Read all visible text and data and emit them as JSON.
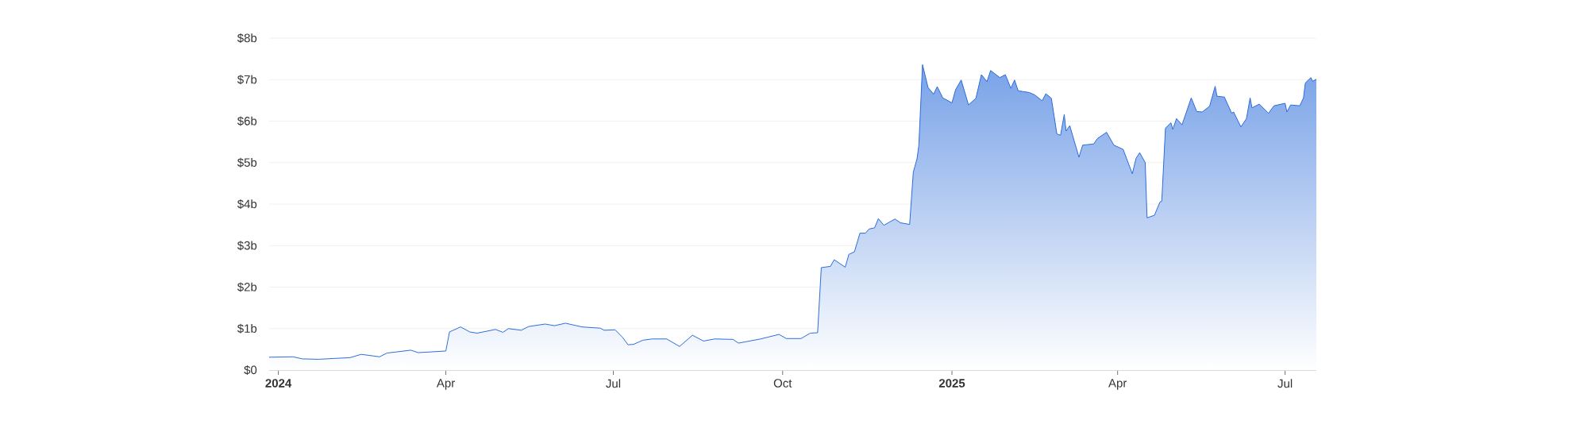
{
  "chart_data": {
    "type": "area",
    "color": "#2f6fdb",
    "grid": "y",
    "xlim": [
      "2023-12-27",
      "2025-07-18"
    ],
    "xticks": [
      {
        "value": "2024-01-01",
        "label": "2024"
      },
      {
        "value": "2024-04-01",
        "label": "Apr"
      },
      {
        "value": "2024-07-01",
        "label": "Jul"
      },
      {
        "value": "2024-10-01",
        "label": "Oct"
      },
      {
        "value": "2025-01-01",
        "label": "2025"
      },
      {
        "value": "2025-04-01",
        "label": "Apr"
      },
      {
        "value": "2025-07-01",
        "label": "Jul"
      }
    ],
    "ylim": [
      0,
      8
    ],
    "yticks": [
      {
        "value": 0,
        "label": "$0"
      },
      {
        "value": 1,
        "label": "$1b"
      },
      {
        "value": 2,
        "label": "$2b"
      },
      {
        "value": 3,
        "label": "$3b"
      },
      {
        "value": 4,
        "label": "$4b"
      },
      {
        "value": 5,
        "label": "$5b"
      },
      {
        "value": 6,
        "label": "$6b"
      },
      {
        "value": 7,
        "label": "$7b"
      },
      {
        "value": 8,
        "label": "$8b"
      }
    ],
    "x": [
      "2023-12-27",
      "2024-01-09",
      "2024-01-14",
      "2024-01-23",
      "2024-02-09",
      "2024-02-15",
      "2024-02-25",
      "2024-02-29",
      "2024-03-13",
      "2024-03-17",
      "2024-04-01",
      "2024-04-03",
      "2024-04-09",
      "2024-04-14",
      "2024-04-18",
      "2024-04-28",
      "2024-05-02",
      "2024-05-05",
      "2024-05-12",
      "2024-05-16",
      "2024-05-25",
      "2024-05-30",
      "2024-06-05",
      "2024-06-14",
      "2024-06-24",
      "2024-06-26",
      "2024-07-02",
      "2024-07-06",
      "2024-07-09",
      "2024-07-12",
      "2024-07-17",
      "2024-07-22",
      "2024-07-30",
      "2024-08-06",
      "2024-08-13",
      "2024-08-19",
      "2024-08-25",
      "2024-09-04",
      "2024-09-07",
      "2024-09-19",
      "2024-09-29",
      "2024-10-03",
      "2024-10-11",
      "2024-10-16",
      "2024-10-20",
      "2024-10-22",
      "2024-10-27",
      "2024-10-29",
      "2024-11-04",
      "2024-11-06",
      "2024-11-09",
      "2024-11-12",
      "2024-11-15",
      "2024-11-17",
      "2024-11-20",
      "2024-11-22",
      "2024-11-25",
      "2024-12-01",
      "2024-12-04",
      "2024-12-09",
      "2024-12-11",
      "2024-12-13",
      "2024-12-14",
      "2024-12-16",
      "2024-12-19",
      "2024-12-22",
      "2024-12-24",
      "2024-12-27",
      "2025-01-01",
      "2025-01-03",
      "2025-01-06",
      "2025-01-10",
      "2025-01-14",
      "2025-01-17",
      "2025-01-20",
      "2025-01-22",
      "2025-01-27",
      "2025-01-30",
      "2025-02-02",
      "2025-02-04",
      "2025-02-06",
      "2025-02-12",
      "2025-02-15",
      "2025-02-19",
      "2025-02-21",
      "2025-02-24",
      "2025-02-27",
      "2025-03-01",
      "2025-03-03",
      "2025-03-04",
      "2025-03-06",
      "2025-03-11",
      "2025-03-13",
      "2025-03-19",
      "2025-03-21",
      "2025-03-26",
      "2025-03-30",
      "2025-04-04",
      "2025-04-09",
      "2025-04-11",
      "2025-04-13",
      "2025-04-16",
      "2025-04-17",
      "2025-04-21",
      "2025-04-24",
      "2025-04-25",
      "2025-04-27",
      "2025-04-30",
      "2025-05-01",
      "2025-05-03",
      "2025-05-06",
      "2025-05-11",
      "2025-05-14",
      "2025-05-17",
      "2025-05-21",
      "2025-05-24",
      "2025-05-25",
      "2025-05-29",
      "2025-06-02",
      "2025-06-03",
      "2025-06-07",
      "2025-06-10",
      "2025-06-12",
      "2025-06-13",
      "2025-06-17",
      "2025-06-22",
      "2025-06-25",
      "2025-07-01",
      "2025-07-02",
      "2025-07-04",
      "2025-07-09",
      "2025-07-11",
      "2025-07-12",
      "2025-07-15",
      "2025-07-16",
      "2025-07-18"
    ],
    "values": [
      0.31,
      0.32,
      0.27,
      0.26,
      0.3,
      0.38,
      0.32,
      0.41,
      0.48,
      0.42,
      0.46,
      0.92,
      1.04,
      0.92,
      0.89,
      0.98,
      0.91,
      1.0,
      0.96,
      1.05,
      1.11,
      1.07,
      1.13,
      1.04,
      1.01,
      0.96,
      0.97,
      0.79,
      0.61,
      0.62,
      0.72,
      0.75,
      0.75,
      0.57,
      0.84,
      0.7,
      0.75,
      0.74,
      0.65,
      0.75,
      0.86,
      0.76,
      0.76,
      0.89,
      0.9,
      2.47,
      2.5,
      2.66,
      2.48,
      2.79,
      2.85,
      3.3,
      3.3,
      3.4,
      3.43,
      3.65,
      3.49,
      3.64,
      3.55,
      3.51,
      4.77,
      5.09,
      5.41,
      7.36,
      6.81,
      6.65,
      6.83,
      6.56,
      6.44,
      6.76,
      6.99,
      6.39,
      6.55,
      7.12,
      6.95,
      7.22,
      7.05,
      7.12,
      6.79,
      6.99,
      6.73,
      6.69,
      6.63,
      6.49,
      6.66,
      6.55,
      5.69,
      5.66,
      6.16,
      5.76,
      5.89,
      5.13,
      5.42,
      5.45,
      5.58,
      5.73,
      5.42,
      5.32,
      4.73,
      5.1,
      5.24,
      5.0,
      3.67,
      3.73,
      4.05,
      4.07,
      5.83,
      5.96,
      5.8,
      6.06,
      5.91,
      6.56,
      6.23,
      6.22,
      6.36,
      6.84,
      6.6,
      6.58,
      6.19,
      6.22,
      5.86,
      6.06,
      6.56,
      6.32,
      6.41,
      6.19,
      6.37,
      6.43,
      6.22,
      6.39,
      6.37,
      6.56,
      6.92,
      7.05,
      6.96,
      7.01
    ]
  }
}
